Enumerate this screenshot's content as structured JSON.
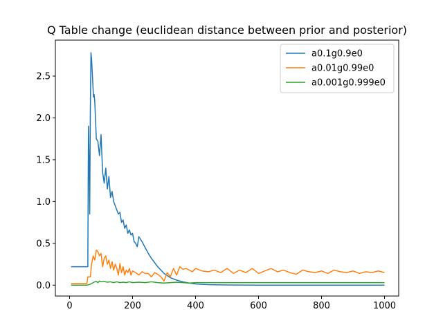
{
  "chart_data": {
    "type": "line",
    "title": "Q Table change (euclidean distance between prior and posterior)",
    "xlabel": "",
    "ylabel": "",
    "xlim": [
      -45,
      1045
    ],
    "ylim": [
      -0.13,
      2.93
    ],
    "xticks": [
      0,
      200,
      400,
      600,
      800,
      1000
    ],
    "yticks": [
      0.0,
      0.5,
      1.0,
      1.5,
      2.0,
      2.5
    ],
    "xtick_labels": [
      "0",
      "200",
      "400",
      "600",
      "800",
      "1000"
    ],
    "ytick_labels": [
      "0.0",
      "0.5",
      "1.0",
      "1.5",
      "2.0",
      "2.5"
    ],
    "grid": false,
    "legend_position": "top-right",
    "series": [
      {
        "name": "a0.1g0.9e0",
        "color": "#1f77b4",
        "x": [
          5,
          20,
          40,
          58,
          60,
          62,
          64,
          66,
          68,
          70,
          72,
          74,
          76,
          78,
          80,
          85,
          90,
          95,
          100,
          105,
          110,
          115,
          120,
          125,
          130,
          135,
          140,
          145,
          150,
          155,
          160,
          165,
          170,
          175,
          180,
          185,
          190,
          195,
          200,
          205,
          210,
          215,
          220,
          230,
          240,
          250,
          260,
          270,
          280,
          290,
          300,
          320,
          340,
          360,
          380,
          400,
          420,
          440,
          460,
          480,
          500,
          550,
          600,
          700,
          800,
          900,
          1000
        ],
        "y": [
          0.22,
          0.22,
          0.22,
          0.22,
          1.9,
          1.5,
          0.85,
          2.1,
          2.78,
          2.7,
          2.55,
          2.4,
          2.25,
          2.28,
          2.2,
          1.75,
          1.72,
          1.55,
          1.8,
          1.35,
          1.22,
          1.4,
          1.15,
          1.3,
          1.05,
          1.12,
          1.0,
          0.95,
          0.9,
          0.85,
          0.87,
          0.75,
          0.78,
          0.68,
          0.72,
          0.62,
          0.66,
          0.6,
          0.62,
          0.52,
          0.5,
          0.46,
          0.58,
          0.52,
          0.45,
          0.38,
          0.32,
          0.27,
          0.22,
          0.18,
          0.14,
          0.09,
          0.06,
          0.04,
          0.025,
          0.015,
          0.01,
          0.006,
          0.004,
          0.003,
          0.002,
          0.001,
          0.0,
          0.0,
          0.0,
          0.0,
          0.0
        ]
      },
      {
        "name": "a0.01g0.99e0",
        "color": "#ff7f0e",
        "x": [
          5,
          20,
          40,
          55,
          58,
          62,
          66,
          70,
          75,
          80,
          85,
          90,
          95,
          100,
          105,
          110,
          115,
          120,
          125,
          130,
          135,
          140,
          145,
          150,
          155,
          160,
          165,
          170,
          175,
          180,
          185,
          190,
          195,
          200,
          210,
          220,
          230,
          240,
          250,
          260,
          270,
          280,
          290,
          300,
          310,
          320,
          330,
          340,
          350,
          360,
          370,
          380,
          390,
          400,
          420,
          440,
          460,
          480,
          500,
          520,
          540,
          560,
          580,
          600,
          620,
          640,
          660,
          680,
          700,
          720,
          740,
          760,
          780,
          800,
          820,
          840,
          860,
          880,
          900,
          920,
          940,
          960,
          980,
          1000
        ],
        "y": [
          0.02,
          0.02,
          0.02,
          0.02,
          0.1,
          0.1,
          0.1,
          0.25,
          0.35,
          0.3,
          0.42,
          0.4,
          0.35,
          0.38,
          0.22,
          0.32,
          0.35,
          0.25,
          0.3,
          0.2,
          0.28,
          0.18,
          0.25,
          0.2,
          0.12,
          0.26,
          0.15,
          0.22,
          0.12,
          0.18,
          0.15,
          0.2,
          0.12,
          0.17,
          0.15,
          0.12,
          0.16,
          0.14,
          0.14,
          0.1,
          0.15,
          0.13,
          0.1,
          0.05,
          0.15,
          0.1,
          0.2,
          0.12,
          0.22,
          0.19,
          0.2,
          0.18,
          0.16,
          0.2,
          0.17,
          0.16,
          0.18,
          0.15,
          0.2,
          0.14,
          0.18,
          0.15,
          0.2,
          0.14,
          0.17,
          0.2,
          0.16,
          0.18,
          0.15,
          0.13,
          0.18,
          0.16,
          0.15,
          0.17,
          0.14,
          0.18,
          0.16,
          0.15,
          0.17,
          0.14,
          0.16,
          0.15,
          0.17,
          0.15
        ]
      },
      {
        "name": "a0.001g0.999e0",
        "color": "#2ca02c",
        "x": [
          5,
          20,
          40,
          55,
          60,
          65,
          70,
          75,
          80,
          85,
          90,
          95,
          100,
          110,
          120,
          130,
          140,
          150,
          160,
          170,
          180,
          190,
          200,
          220,
          240,
          260,
          280,
          300,
          320,
          340,
          360,
          380,
          400,
          450,
          500,
          550,
          600,
          650,
          700,
          750,
          800,
          850,
          900,
          950,
          1000
        ],
        "y": [
          0.0,
          0.0,
          0.0,
          0.0,
          0.005,
          0.01,
          0.02,
          0.03,
          0.04,
          0.045,
          0.03,
          0.05,
          0.04,
          0.045,
          0.035,
          0.04,
          0.03,
          0.04,
          0.03,
          0.035,
          0.03,
          0.04,
          0.03,
          0.035,
          0.03,
          0.04,
          0.03,
          0.025,
          0.03,
          0.035,
          0.03,
          0.025,
          0.03,
          0.03,
          0.03,
          0.03,
          0.03,
          0.03,
          0.03,
          0.03,
          0.03,
          0.03,
          0.03,
          0.03,
          0.03
        ]
      }
    ]
  }
}
